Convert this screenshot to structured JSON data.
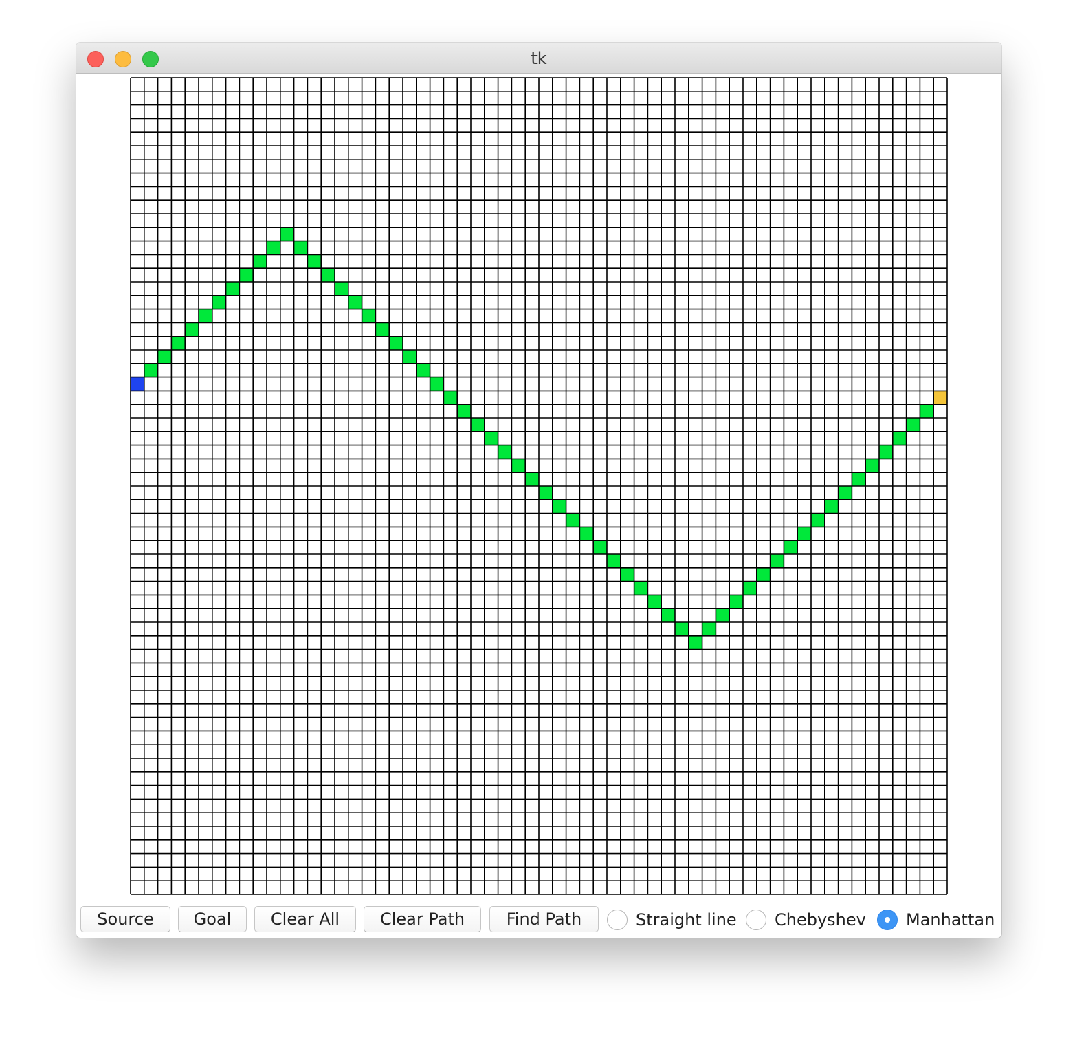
{
  "window": {
    "title": "tk"
  },
  "grid": {
    "columns": 60,
    "rows": 60,
    "line_color": "#000000",
    "cell_color": "#ffffff",
    "source_color": "#1f44f0",
    "goal_color": "#f5c53a",
    "path_color": "#00e83a",
    "source_cell": [
      0,
      22
    ],
    "goal_cell": [
      59,
      23
    ],
    "path_cells": [
      [
        1,
        21
      ],
      [
        2,
        20
      ],
      [
        3,
        19
      ],
      [
        4,
        18
      ],
      [
        5,
        17
      ],
      [
        6,
        16
      ],
      [
        7,
        15
      ],
      [
        8,
        14
      ],
      [
        9,
        13
      ],
      [
        10,
        12
      ],
      [
        11,
        11
      ],
      [
        12,
        12
      ],
      [
        13,
        13
      ],
      [
        14,
        14
      ],
      [
        15,
        15
      ],
      [
        16,
        16
      ],
      [
        17,
        17
      ],
      [
        18,
        18
      ],
      [
        19,
        19
      ],
      [
        20,
        20
      ],
      [
        21,
        21
      ],
      [
        22,
        22
      ],
      [
        23,
        23
      ],
      [
        24,
        24
      ],
      [
        25,
        25
      ],
      [
        26,
        26
      ],
      [
        27,
        27
      ],
      [
        28,
        28
      ],
      [
        29,
        29
      ],
      [
        30,
        30
      ],
      [
        31,
        31
      ],
      [
        32,
        32
      ],
      [
        33,
        33
      ],
      [
        34,
        34
      ],
      [
        35,
        35
      ],
      [
        36,
        36
      ],
      [
        37,
        37
      ],
      [
        38,
        38
      ],
      [
        39,
        39
      ],
      [
        40,
        40
      ],
      [
        41,
        41
      ],
      [
        42,
        40
      ],
      [
        43,
        39
      ],
      [
        44,
        38
      ],
      [
        45,
        37
      ],
      [
        46,
        36
      ],
      [
        47,
        35
      ],
      [
        48,
        34
      ],
      [
        49,
        33
      ],
      [
        50,
        32
      ],
      [
        51,
        31
      ],
      [
        52,
        30
      ],
      [
        53,
        29
      ],
      [
        54,
        28
      ],
      [
        55,
        27
      ],
      [
        56,
        26
      ],
      [
        57,
        25
      ],
      [
        58,
        24
      ]
    ]
  },
  "toolbar": {
    "source_label": "Source",
    "goal_label": "Goal",
    "clear_all_label": "Clear All",
    "clear_path_label": "Clear Path",
    "find_path_label": "Find Path",
    "heuristics": [
      {
        "label": "Straight line",
        "checked": false
      },
      {
        "label": "Chebyshev",
        "checked": false
      },
      {
        "label": "Manhattan",
        "checked": true
      }
    ]
  },
  "colors": {
    "accent": "#3d95f5",
    "close": "#fc605b",
    "minimize": "#fdbc40",
    "maximize": "#34c84a"
  }
}
